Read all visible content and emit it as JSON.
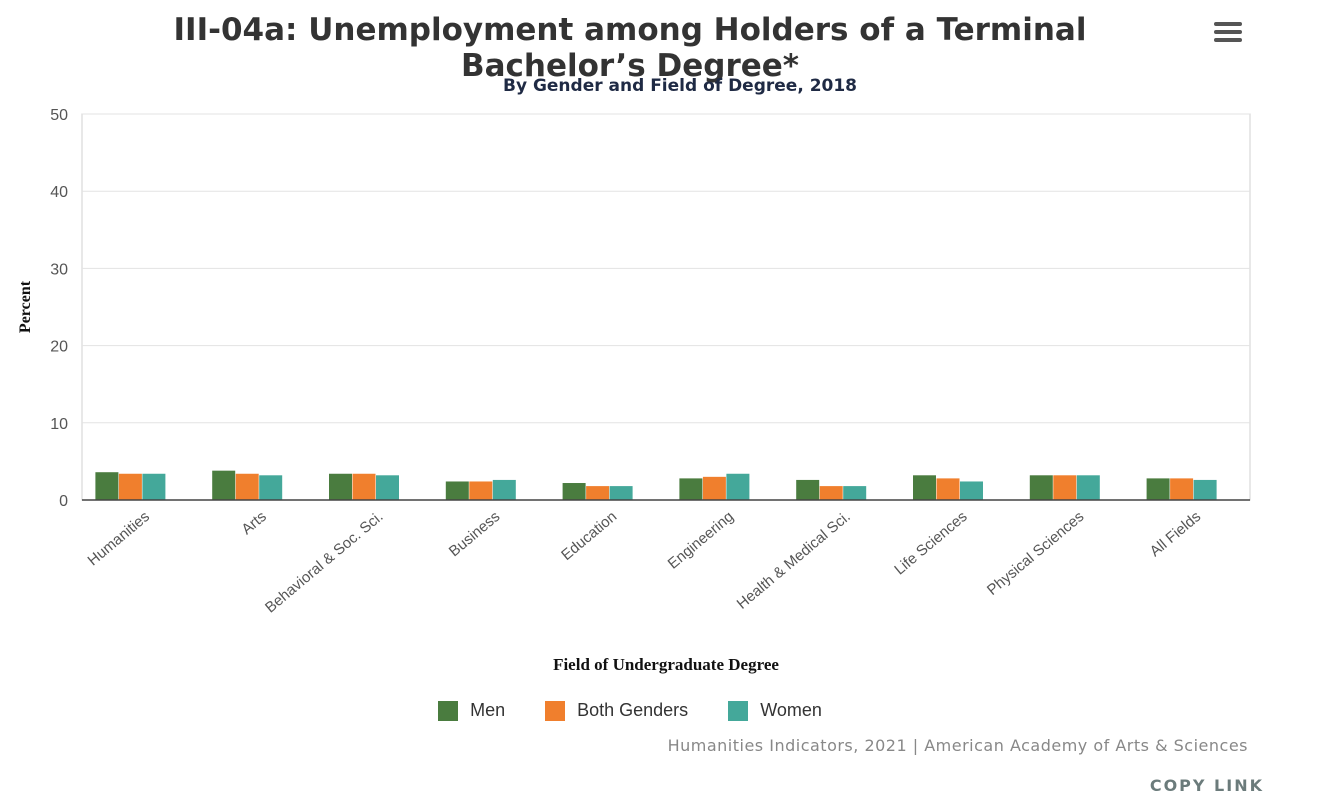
{
  "menu": {
    "icon": "hamburger-menu-icon"
  },
  "credits": "Humanities Indicators, 2021 | American Academy of Arts & Sciences",
  "copy_link": "COPY LINK",
  "chart_data": {
    "type": "bar",
    "title": "III-04a: Unemployment among Holders of a Terminal Bachelor’s Degree*",
    "subtitle": "By Gender and Field of Degree, 2018",
    "xlabel": "Field of Undergraduate Degree",
    "ylabel": "Percent",
    "ylim": [
      0,
      50
    ],
    "yticks": [
      0,
      10,
      20,
      30,
      40,
      50
    ],
    "grid": true,
    "legend_position": "bottom-center",
    "categories": [
      "Humanities",
      "Arts",
      "Behavioral & Soc. Sci.",
      "Business",
      "Education",
      "Engineering",
      "Health & Medical Sci.",
      "Life Sciences",
      "Physical Sciences",
      "All Fields"
    ],
    "series": [
      {
        "name": "Men",
        "color": "#4a7c3f",
        "values": [
          3.6,
          3.8,
          3.4,
          2.4,
          2.2,
          2.8,
          2.6,
          3.2,
          3.2,
          2.8
        ]
      },
      {
        "name": "Both Genders",
        "color": "#f07f2d",
        "values": [
          3.4,
          3.4,
          3.4,
          2.4,
          1.8,
          3.0,
          1.8,
          2.8,
          3.2,
          2.8
        ]
      },
      {
        "name": "Women",
        "color": "#44a89a",
        "values": [
          3.4,
          3.2,
          3.2,
          2.6,
          1.8,
          3.4,
          1.8,
          2.4,
          3.2,
          2.6
        ]
      }
    ]
  }
}
